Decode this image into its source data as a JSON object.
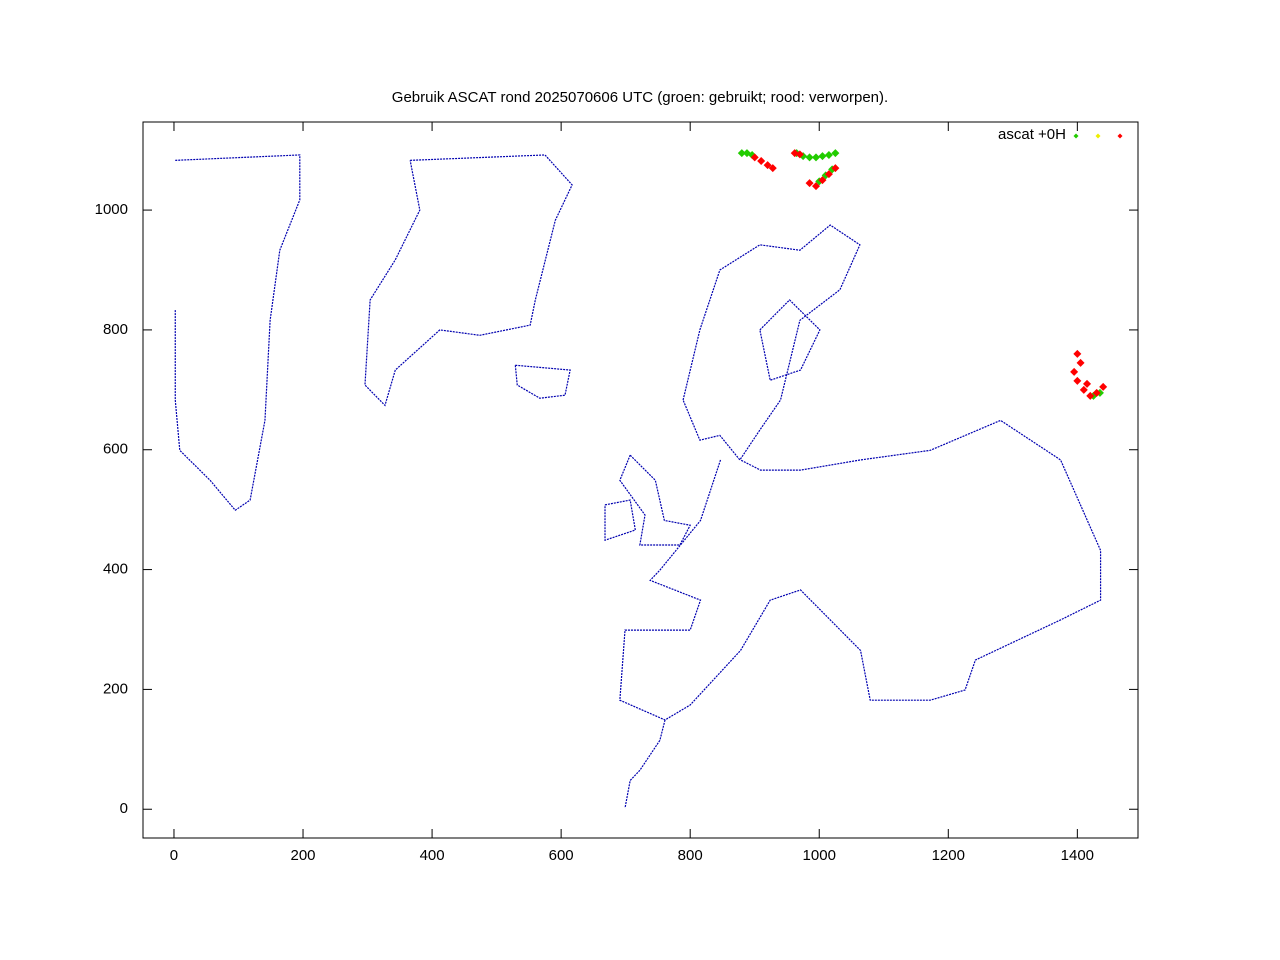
{
  "chart_data": {
    "type": "scatter",
    "title": "Gebruik ASCAT rond 2025070606 UTC (groen: gebruikt; rood: verworpen).",
    "xlim": [
      -48,
      1494
    ],
    "ylim": [
      -48,
      1147
    ],
    "xticks": [
      0,
      200,
      400,
      600,
      800,
      1000,
      1200,
      1400
    ],
    "yticks": [
      0,
      200,
      400,
      600,
      800,
      1000
    ],
    "legend": "top-right",
    "series": [
      {
        "name": "ascat +0H",
        "color": "#22cc00",
        "x": [
          880,
          888,
          896,
          965,
          975,
          985,
          995,
          1005,
          1015,
          1025,
          1000,
          1010,
          1020,
          1425,
          1435
        ],
        "values": [
          1095,
          1095,
          1092,
          1095,
          1090,
          1088,
          1088,
          1090,
          1092,
          1095,
          1048,
          1058,
          1068,
          690,
          695
        ]
      },
      {
        "color": "#eeee00",
        "x": [],
        "values": []
      },
      {
        "color": "#ff0000",
        "x": [
          900,
          910,
          920,
          928,
          962,
          970,
          985,
          995,
          1005,
          1015,
          1025,
          1400,
          1405,
          1395,
          1400,
          1410,
          1420,
          1430,
          1440,
          1415
        ],
        "values": [
          1088,
          1082,
          1075,
          1070,
          1095,
          1093,
          1045,
          1040,
          1050,
          1060,
          1070,
          760,
          745,
          730,
          715,
          700,
          690,
          695,
          705,
          710
        ]
      }
    ],
    "coastline_color": "#0000b0",
    "coastlines": [
      {
        "x": [
          366,
          575,
          617,
          591,
          560,
          552,
          474,
          412,
          343,
          327,
          296,
          304,
          343,
          381,
          366
        ],
        "values": [
          1083,
          1092,
          1042,
          983,
          850,
          808,
          791,
          800,
          733,
          674,
          708,
          850,
          917,
          1000,
          1083
        ]
      },
      {
        "x": [
          529,
          614,
          606,
          567,
          532,
          529
        ],
        "values": [
          741,
          733,
          691,
          686,
          708,
          741
        ]
      },
      {
        "x": [
          789,
          815,
          846,
          908,
          970,
          1017,
          1063,
          1032,
          970,
          940,
          908,
          877,
          846,
          815,
          789
        ],
        "values": [
          683,
          800,
          900,
          942,
          933,
          975,
          942,
          867,
          816,
          683,
          633,
          583,
          624,
          616,
          683
        ]
      },
      {
        "x": [
          707,
          746,
          760,
          800,
          784,
          722,
          730,
          691,
          707
        ],
        "values": [
          591,
          549,
          482,
          474,
          441,
          441,
          491,
          549,
          591
        ]
      },
      {
        "x": [
          668,
          707,
          715,
          668,
          668
        ],
        "values": [
          508,
          516,
          466,
          449,
          508
        ]
      },
      {
        "x": [
          847,
          816,
          753,
          738,
          816,
          800,
          699,
          691,
          761,
          800,
          878,
          924,
          971,
          1064,
          1079,
          1172,
          1226,
          1242,
          1374,
          1436,
          1436,
          1374,
          1281,
          1172,
          1064,
          971,
          909,
          878
        ],
        "values": [
          583,
          482,
          399,
          382,
          349,
          299,
          299,
          182,
          149,
          174,
          265,
          349,
          366,
          265,
          182,
          182,
          199,
          249,
          316,
          349,
          432,
          583,
          649,
          599,
          583,
          566,
          566,
          583
        ]
      },
      {
        "x": [
          761,
          753,
          722,
          707,
          699
        ],
        "values": [
          149,
          115,
          65,
          48,
          2
        ]
      },
      {
        "x": [
          2,
          195,
          195,
          164,
          149,
          141,
          118,
          95,
          56,
          9,
          2,
          2
        ],
        "values": [
          1083,
          1092,
          1017,
          933,
          816,
          649,
          516,
          499,
          549,
          599,
          683,
          833
        ]
      },
      {
        "x": [
          908,
          954,
          1001,
          971,
          924,
          908
        ],
        "values": [
          800,
          850,
          800,
          733,
          716,
          800
        ]
      }
    ]
  }
}
